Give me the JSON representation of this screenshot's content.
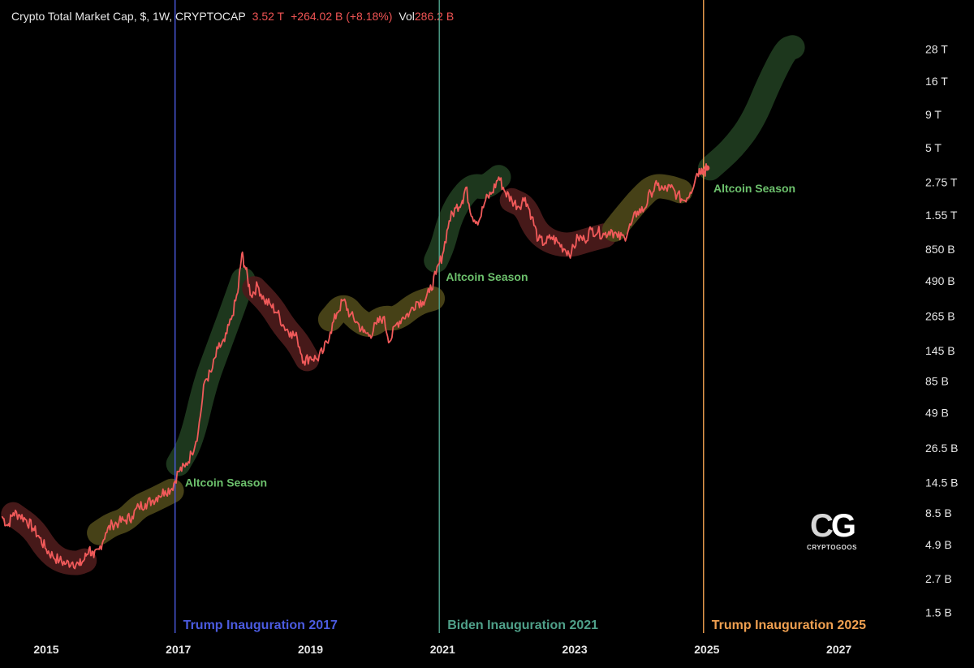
{
  "header": {
    "symbol": "Crypto Total Market Cap, $, 1W, CRYPTOCAP",
    "price": "3.52 T",
    "change": "+264.02 B (+8.18%)",
    "vol_label": "Vol",
    "vol_value": "286.2 B"
  },
  "logo": {
    "mark_left": "C",
    "mark_right": "G",
    "name": "CRYPTOGOOS"
  },
  "colors": {
    "price_line": "#f05a5a",
    "green_zone": "#1f3a1f",
    "yellow_zone": "#4a4418",
    "red_zone": "#4a1a1a",
    "season_text": "#6cc06c",
    "trump_2017": "#4b5be0",
    "biden_2021": "#4fa089",
    "trump_2025": "#f0a050"
  },
  "chart_data": {
    "type": "line",
    "scale": "log",
    "yunit": "USD",
    "xlim": [
      2014.3,
      2028.0
    ],
    "ylim_usd": [
      1200000000.0,
      35000000000000.0
    ],
    "x_ticks": [
      "2015",
      "2017",
      "2019",
      "2021",
      "2023",
      "2025",
      "2027"
    ],
    "x_tick_values": [
      2015,
      2017,
      2019,
      2021,
      2023,
      2025,
      2027
    ],
    "y_ticks": [
      "28 T",
      "16 T",
      "9 T",
      "5 T",
      "2.75 T",
      "1.55 T",
      "850 B",
      "490 B",
      "265 B",
      "145 B",
      "85 B",
      "49 B",
      "26.5 B",
      "14.5 B",
      "8.5 B",
      "4.9 B",
      "2.7 B",
      "1.5 B"
    ],
    "y_tick_values": [
      28000000000000.0,
      16000000000000.0,
      9000000000000.0,
      5000000000000.0,
      2750000000000.0,
      1550000000000.0,
      850000000000.0,
      490000000000.0,
      265000000000.0,
      145000000000.0,
      85000000000.0,
      49000000000.0,
      26500000000.0,
      14500000000.0,
      8500000000.0,
      4900000000.0,
      2700000000.0,
      1500000000.0
    ],
    "series": [
      {
        "points": [
          [
            2014.33,
            8000000000.0
          ],
          [
            2014.42,
            6800000000.0
          ],
          [
            2014.5,
            8500000000.0
          ],
          [
            2014.6,
            8200000000.0
          ],
          [
            2014.7,
            7500000000.0
          ],
          [
            2014.8,
            6500000000.0
          ],
          [
            2014.9,
            5500000000.0
          ],
          [
            2015.0,
            4500000000.0
          ],
          [
            2015.1,
            4000000000.0
          ],
          [
            2015.2,
            3700000000.0
          ],
          [
            2015.3,
            3500000000.0
          ],
          [
            2015.4,
            3600000000.0
          ],
          [
            2015.5,
            3400000000.0
          ],
          [
            2015.58,
            3800000000.0
          ],
          [
            2015.65,
            4600000000.0
          ],
          [
            2015.72,
            3900000000.0
          ],
          [
            2015.8,
            4500000000.0
          ],
          [
            2015.9,
            6000000000.0
          ],
          [
            2016.0,
            7000000000.0
          ],
          [
            2016.1,
            7200000000.0
          ],
          [
            2016.2,
            7500000000.0
          ],
          [
            2016.3,
            8000000000.0
          ],
          [
            2016.4,
            9500000000.0
          ],
          [
            2016.5,
            10000000000.0
          ],
          [
            2016.6,
            10500000000.0
          ],
          [
            2016.7,
            11500000000.0
          ],
          [
            2016.8,
            12500000000.0
          ],
          [
            2016.9,
            13000000000.0
          ],
          [
            2017.0,
            17500000000.0
          ],
          [
            2017.1,
            19000000000.0
          ],
          [
            2017.2,
            24000000000.0
          ],
          [
            2017.3,
            35000000000.0
          ],
          [
            2017.4,
            85000000000.0
          ],
          [
            2017.5,
            100000000000.0
          ],
          [
            2017.6,
            150000000000.0
          ],
          [
            2017.7,
            170000000000.0
          ],
          [
            2017.8,
            250000000000.0
          ],
          [
            2017.9,
            400000000000.0
          ],
          [
            2017.96,
            780000000000.0
          ],
          [
            2018.02,
            600000000000.0
          ],
          [
            2018.1,
            380000000000.0
          ],
          [
            2018.2,
            450000000000.0
          ],
          [
            2018.3,
            350000000000.0
          ],
          [
            2018.4,
            320000000000.0
          ],
          [
            2018.5,
            280000000000.0
          ],
          [
            2018.6,
            220000000000.0
          ],
          [
            2018.7,
            200000000000.0
          ],
          [
            2018.8,
            180000000000.0
          ],
          [
            2018.9,
            120000000000.0
          ],
          [
            2019.0,
            130000000000.0
          ],
          [
            2019.1,
            125000000000.0
          ],
          [
            2019.2,
            145000000000.0
          ],
          [
            2019.3,
            200000000000.0
          ],
          [
            2019.4,
            280000000000.0
          ],
          [
            2019.5,
            350000000000.0
          ],
          [
            2019.6,
            270000000000.0
          ],
          [
            2019.7,
            240000000000.0
          ],
          [
            2019.8,
            200000000000.0
          ],
          [
            2019.9,
            190000000000.0
          ],
          [
            2020.0,
            230000000000.0
          ],
          [
            2020.1,
            260000000000.0
          ],
          [
            2020.2,
            170000000000.0
          ],
          [
            2020.3,
            230000000000.0
          ],
          [
            2020.4,
            260000000000.0
          ],
          [
            2020.5,
            280000000000.0
          ],
          [
            2020.6,
            340000000000.0
          ],
          [
            2020.7,
            340000000000.0
          ],
          [
            2020.8,
            400000000000.0
          ],
          [
            2020.9,
            550000000000.0
          ],
          [
            2021.0,
            780000000000.0
          ],
          [
            2021.1,
            1400000000000.0
          ],
          [
            2021.2,
            1750000000000.0
          ],
          [
            2021.3,
            2000000000000.0
          ],
          [
            2021.35,
            2500000000000.0
          ],
          [
            2021.45,
            1500000000000.0
          ],
          [
            2021.55,
            1400000000000.0
          ],
          [
            2021.65,
            2000000000000.0
          ],
          [
            2021.75,
            2300000000000.0
          ],
          [
            2021.85,
            3000000000000.0
          ],
          [
            2021.95,
            2300000000000.0
          ],
          [
            2022.05,
            2000000000000.0
          ],
          [
            2022.15,
            1800000000000.0
          ],
          [
            2022.25,
            2100000000000.0
          ],
          [
            2022.35,
            1500000000000.0
          ],
          [
            2022.45,
            1000000000000.0
          ],
          [
            2022.55,
            950000000000.0
          ],
          [
            2022.65,
            1050000000000.0
          ],
          [
            2022.75,
            950000000000.0
          ],
          [
            2022.85,
            850000000000.0
          ],
          [
            2022.95,
            800000000000.0
          ],
          [
            2023.05,
            1050000000000.0
          ],
          [
            2023.15,
            1000000000000.0
          ],
          [
            2023.25,
            1200000000000.0
          ],
          [
            2023.35,
            1150000000000.0
          ],
          [
            2023.45,
            1100000000000.0
          ],
          [
            2023.55,
            1200000000000.0
          ],
          [
            2023.65,
            1050000000000.0
          ],
          [
            2023.75,
            1050000000000.0
          ],
          [
            2023.85,
            1300000000000.0
          ],
          [
            2023.95,
            1650000000000.0
          ],
          [
            2024.05,
            1700000000000.0
          ],
          [
            2024.15,
            2300000000000.0
          ],
          [
            2024.25,
            2600000000000.0
          ],
          [
            2024.35,
            2400000000000.0
          ],
          [
            2024.45,
            2500000000000.0
          ],
          [
            2024.55,
            2200000000000.0
          ],
          [
            2024.65,
            2000000000000.0
          ],
          [
            2024.75,
            2300000000000.0
          ],
          [
            2024.85,
            3200000000000.0
          ],
          [
            2024.92,
            3500000000000.0
          ],
          [
            2024.97,
            3300000000000.0
          ],
          [
            2025.0,
            3520000000000.0
          ]
        ]
      }
    ],
    "zones": [
      {
        "kind": "red",
        "points": [
          [
            2014.5,
            8300000000.0
          ],
          [
            2014.8,
            6500000000.0
          ],
          [
            2015.0,
            4500000000.0
          ],
          [
            2015.2,
            3700000000.0
          ],
          [
            2015.45,
            3500000000.0
          ],
          [
            2015.58,
            3700000000.0
          ]
        ]
      },
      {
        "kind": "yellow",
        "points": [
          [
            2015.8,
            6000000000.0
          ],
          [
            2016.0,
            7000000000.0
          ],
          [
            2016.2,
            7500000000.0
          ],
          [
            2016.4,
            9500000000.0
          ],
          [
            2016.6,
            10500000000.0
          ],
          [
            2016.9,
            12500000000.0
          ]
        ]
      },
      {
        "kind": "green",
        "points": [
          [
            2017.0,
            20000000000.0
          ],
          [
            2017.2,
            30000000000.0
          ],
          [
            2017.4,
            80000000000.0
          ],
          [
            2017.6,
            150000000000.0
          ],
          [
            2017.8,
            280000000000.0
          ],
          [
            2017.98,
            500000000000.0
          ]
        ]
      },
      {
        "kind": "red",
        "points": [
          [
            2018.15,
            430000000000.0
          ],
          [
            2018.4,
            320000000000.0
          ],
          [
            2018.6,
            220000000000.0
          ],
          [
            2018.8,
            170000000000.0
          ],
          [
            2018.95,
            125000000000.0
          ]
        ]
      },
      {
        "kind": "yellow",
        "points": [
          [
            2019.3,
            250000000000.0
          ],
          [
            2019.5,
            330000000000.0
          ],
          [
            2019.7,
            250000000000.0
          ],
          [
            2019.9,
            220000000000.0
          ],
          [
            2020.1,
            260000000000.0
          ],
          [
            2020.3,
            250000000000.0
          ],
          [
            2020.6,
            330000000000.0
          ],
          [
            2020.85,
            360000000000.0
          ]
        ]
      },
      {
        "kind": "green",
        "points": [
          [
            2020.9,
            700000000000.0
          ],
          [
            2021.0,
            900000000000.0
          ],
          [
            2021.1,
            1400000000000.0
          ],
          [
            2021.25,
            2000000000000.0
          ],
          [
            2021.45,
            2600000000000.0
          ],
          [
            2021.65,
            2500000000000.0
          ],
          [
            2021.85,
            3000000000000.0
          ]
        ]
      },
      {
        "kind": "red",
        "points": [
          [
            2022.05,
            2000000000000.0
          ],
          [
            2022.25,
            1800000000000.0
          ],
          [
            2022.4,
            1200000000000.0
          ],
          [
            2022.6,
            980000000000.0
          ],
          [
            2022.9,
            900000000000.0
          ],
          [
            2023.2,
            1000000000000.0
          ],
          [
            2023.45,
            1080000000000.0
          ]
        ]
      },
      {
        "kind": "yellow",
        "points": [
          [
            2023.6,
            1200000000000.0
          ],
          [
            2023.8,
            1600000000000.0
          ],
          [
            2024.0,
            2100000000000.0
          ],
          [
            2024.2,
            2600000000000.0
          ],
          [
            2024.45,
            2500000000000.0
          ],
          [
            2024.6,
            2350000000000.0
          ]
        ]
      },
      {
        "kind": "green",
        "points": [
          [
            2025.05,
            3500000000000.0
          ],
          [
            2025.4,
            5000000000000.0
          ],
          [
            2025.7,
            8000000000000.0
          ],
          [
            2025.95,
            16000000000000.0
          ],
          [
            2026.2,
            28000000000000.0
          ],
          [
            2026.3,
            29000000000000.0
          ]
        ]
      }
    ],
    "annotations": [
      {
        "text": "Altcoin Season",
        "x": 2017.1,
        "y": 13500000000.0
      },
      {
        "text": "Altcoin Season",
        "x": 2021.05,
        "y": 490000000000.0
      },
      {
        "text": "Altcoin Season",
        "x": 2025.1,
        "y": 2300000000000.0
      }
    ],
    "events": [
      {
        "label": "Trump Inauguration 2017",
        "x": 2016.95,
        "color_key": "trump_2017"
      },
      {
        "label": "Biden Inauguration 2021",
        "x": 2020.95,
        "color_key": "biden_2021"
      },
      {
        "label": "Trump Inauguration 2025",
        "x": 2024.95,
        "color_key": "trump_2025"
      }
    ]
  }
}
